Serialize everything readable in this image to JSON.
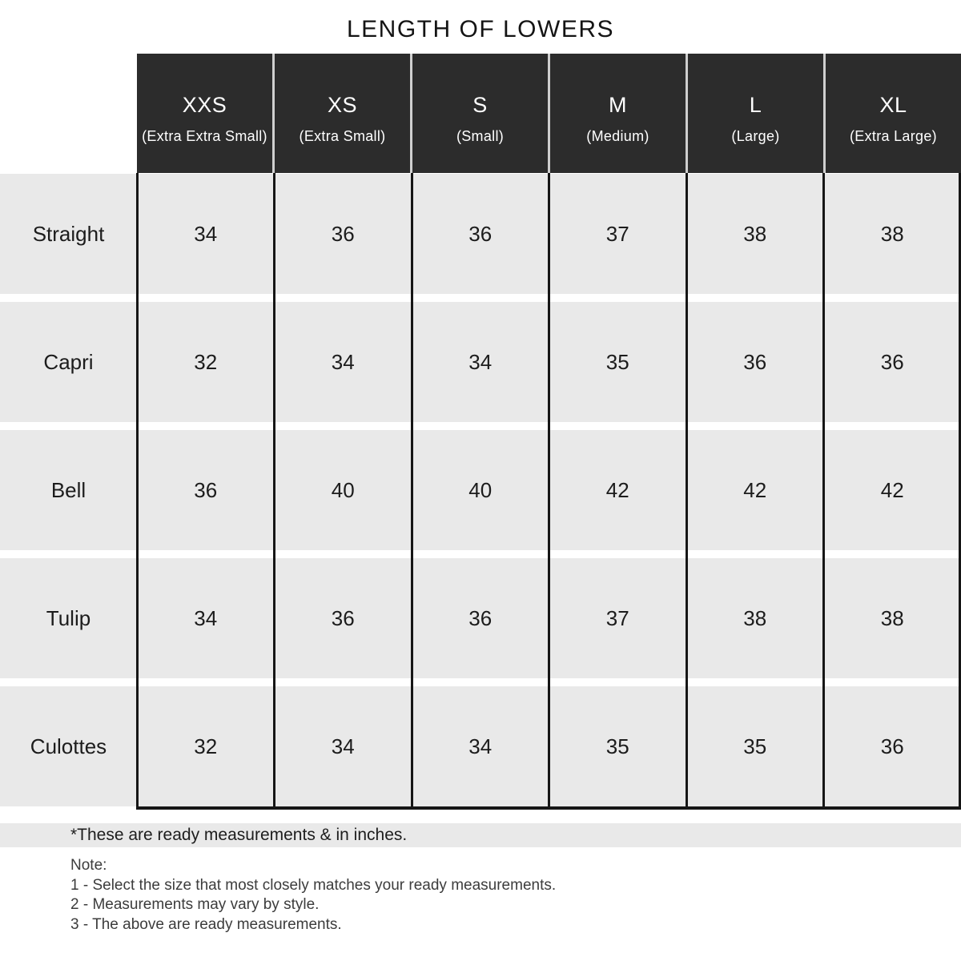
{
  "title": "LENGTH OF LOWERS",
  "table": {
    "columns": [
      {
        "size": "XXS",
        "full": "(Extra Extra Small)"
      },
      {
        "size": "XS",
        "full": "(Extra Small)"
      },
      {
        "size": "S",
        "full": "(Small)"
      },
      {
        "size": "M",
        "full": "(Medium)"
      },
      {
        "size": "L",
        "full": "(Large)"
      },
      {
        "size": "XL",
        "full": "(Extra Large)"
      }
    ],
    "rows": [
      {
        "label": "Straight",
        "values": [
          "34",
          "36",
          "36",
          "37",
          "38",
          "38"
        ]
      },
      {
        "label": "Capri",
        "values": [
          "32",
          "34",
          "34",
          "35",
          "36",
          "36"
        ]
      },
      {
        "label": "Bell",
        "values": [
          "36",
          "40",
          "40",
          "42",
          "42",
          "42"
        ]
      },
      {
        "label": "Tulip",
        "values": [
          "34",
          "36",
          "36",
          "37",
          "38",
          "38"
        ]
      },
      {
        "label": "Culottes",
        "values": [
          "32",
          "34",
          "34",
          "35",
          "35",
          "36"
        ]
      }
    ]
  },
  "footnote": "*These are ready measurements & in inches.",
  "note": {
    "heading": "Note:",
    "items": [
      "1 - Select the size that most closely matches your ready measurements.",
      "2 - Measurements may vary by style.",
      "3 - The above are ready measurements."
    ]
  },
  "colors": {
    "header_bg": "#2c2c2c",
    "header_text": "#ffffff",
    "row_bg": "#e9e9e9",
    "divider": "#161616",
    "note_text": "#3c3c3c"
  },
  "chart_data": {
    "type": "table",
    "title": "LENGTH OF LOWERS",
    "units": "inches",
    "columns": [
      "XXS (Extra Extra Small)",
      "XS (Extra Small)",
      "S (Small)",
      "M (Medium)",
      "L (Large)",
      "XL (Extra Large)"
    ],
    "row_labels": [
      "Straight",
      "Capri",
      "Bell",
      "Tulip",
      "Culottes"
    ],
    "values": [
      [
        34,
        36,
        36,
        37,
        38,
        38
      ],
      [
        32,
        34,
        34,
        35,
        36,
        36
      ],
      [
        36,
        40,
        40,
        42,
        42,
        42
      ],
      [
        34,
        36,
        36,
        37,
        38,
        38
      ],
      [
        32,
        34,
        34,
        35,
        35,
        36
      ]
    ],
    "footnote": "*These are ready measurements & in inches."
  }
}
